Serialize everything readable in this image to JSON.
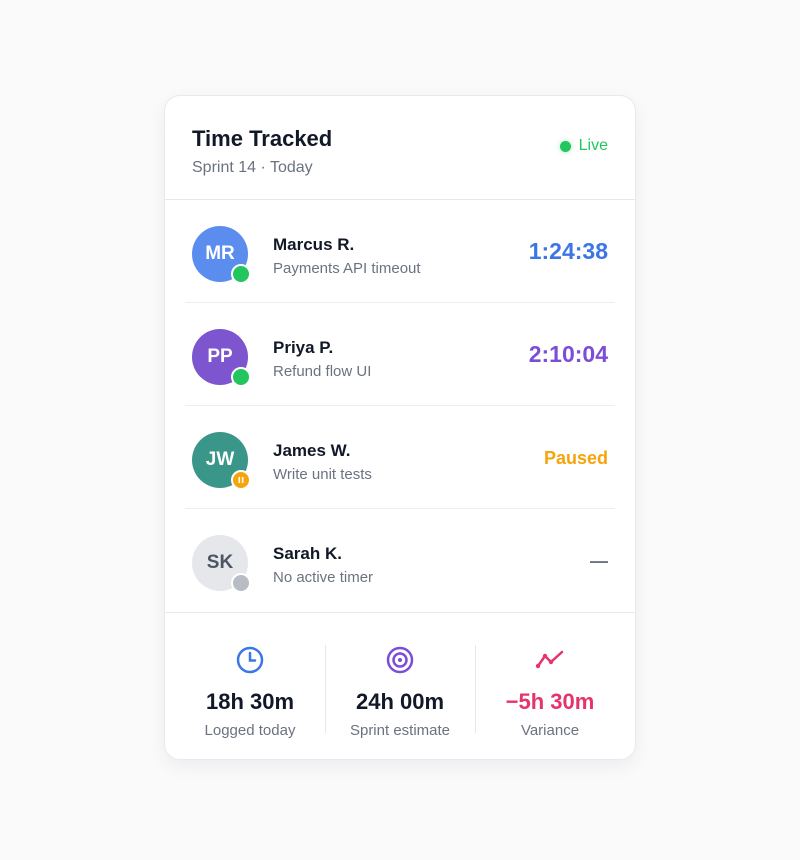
{
  "header": {
    "title": "Time Tracked",
    "subtitle": "Sprint 14 · Today",
    "status": "Live",
    "status_color": "#22c55e"
  },
  "members": [
    {
      "initials": "MR",
      "name": "Marcus R.",
      "task": "Payments API timeout",
      "value": "1:24:38",
      "avatar_color": "#5b8def",
      "value_color": "#3b76e6",
      "state": "running"
    },
    {
      "initials": "PP",
      "name": "Priya P.",
      "task": "Refund flow UI",
      "value": "2:10:04",
      "avatar_color": "#7c55cf",
      "value_color": "#7c4dd6",
      "state": "running"
    },
    {
      "initials": "JW",
      "name": "James W.",
      "task": "Write unit tests",
      "value": "Paused",
      "avatar_color": "#3b968a",
      "value_color": "#f5a50b",
      "state": "paused"
    },
    {
      "initials": "SK",
      "name": "Sarah K.",
      "task": "No active timer",
      "value": "—",
      "avatar_color": "#e5e7eb",
      "value_color": "#6b7280",
      "state": "idle"
    }
  ],
  "stats": [
    {
      "icon": "clock-icon",
      "value": "18h 30m",
      "label": "Logged today",
      "color": "#3b76e6"
    },
    {
      "icon": "target-icon",
      "value": "24h 00m",
      "label": "Sprint estimate",
      "color": "#7c4dd6"
    },
    {
      "icon": "trend-line-icon",
      "value": "−5h 30m",
      "label": "Variance",
      "color": "#e5336b"
    }
  ]
}
